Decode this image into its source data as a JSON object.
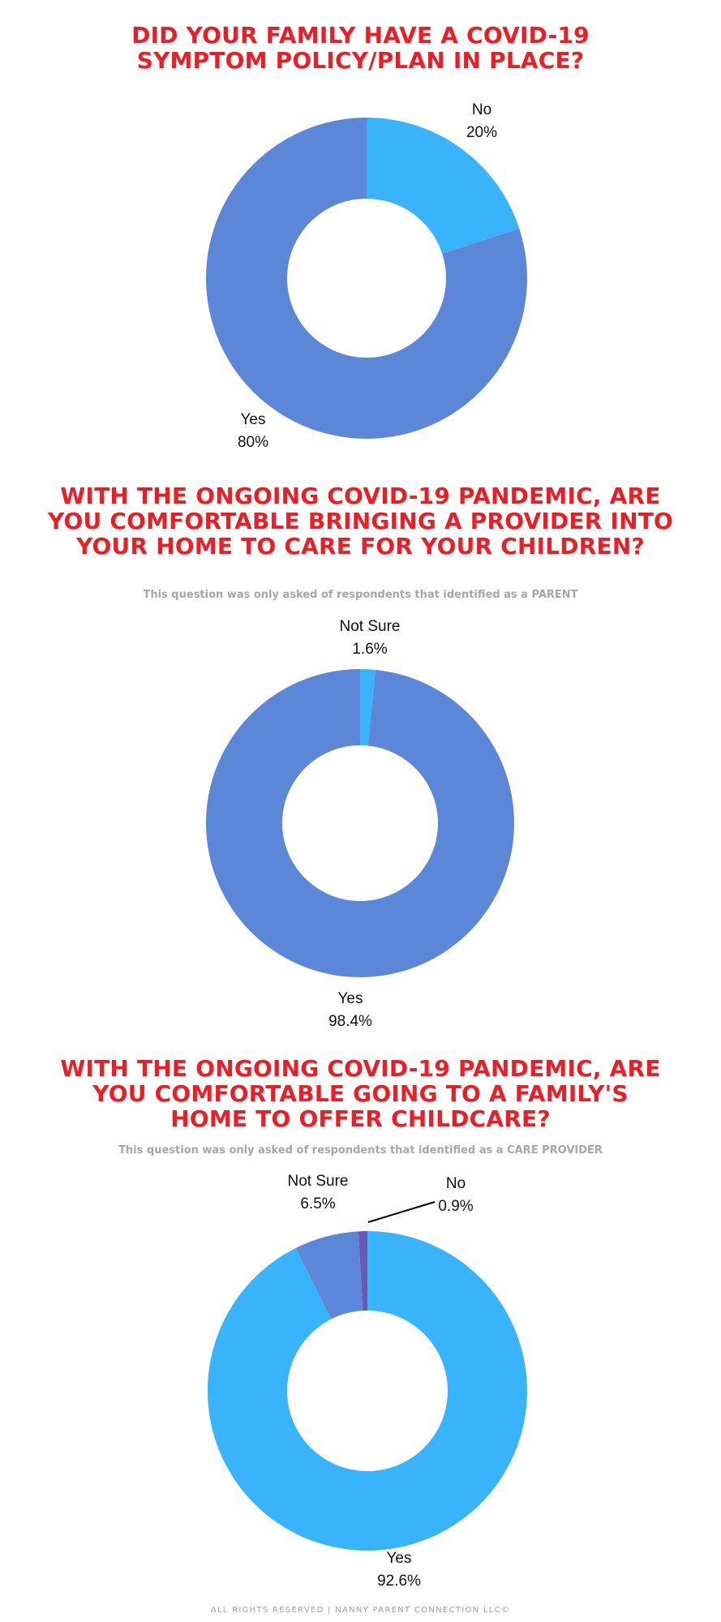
{
  "chart_data": [
    {
      "type": "pie",
      "title": "DID YOUR FAMILY HAVE A COVID-19 SYMPTOM POLICY/PLAN IN PLACE?",
      "subtitle": "",
      "slices": [
        {
          "label": "No",
          "value": 20,
          "value_label": "20%",
          "color": "#39b4fc"
        },
        {
          "label": "Yes",
          "value": 80,
          "value_label": "80%",
          "color": "#5c87d8"
        }
      ]
    },
    {
      "type": "pie",
      "title": "WITH THE ONGOING COVID-19 PANDEMIC, ARE YOU COMFORTABLE BRINGING A PROVIDER INTO YOUR HOME TO CARE FOR YOUR CHILDREN?",
      "subtitle": "This question was only asked of respondents that identified as a PARENT",
      "slices": [
        {
          "label": "Not Sure",
          "value": 1.6,
          "value_label": "1.6%",
          "color": "#39b4fc"
        },
        {
          "label": "Yes",
          "value": 98.4,
          "value_label": "98.4%",
          "color": "#5c87d8"
        }
      ]
    },
    {
      "type": "pie",
      "title": "WITH THE ONGOING COVID-19 PANDEMIC, ARE YOU COMFORTABLE GOING TO A FAMILY'S HOME TO OFFER CHILDCARE?",
      "subtitle": "This question was only asked of respondents that identified as a CARE PROVIDER",
      "slices": [
        {
          "label": "Yes",
          "value": 92.6,
          "value_label": "92.6%",
          "color": "#39b4fc"
        },
        {
          "label": "Not Sure",
          "value": 6.5,
          "value_label": "6.5%",
          "color": "#5c87d8"
        },
        {
          "label": "No",
          "value": 0.9,
          "value_label": "0.9%",
          "color": "#6a58b3"
        }
      ]
    }
  ],
  "footer": "ALL RIGHTS RESERVED | NANNY PARENT CONNECTION LLC©"
}
